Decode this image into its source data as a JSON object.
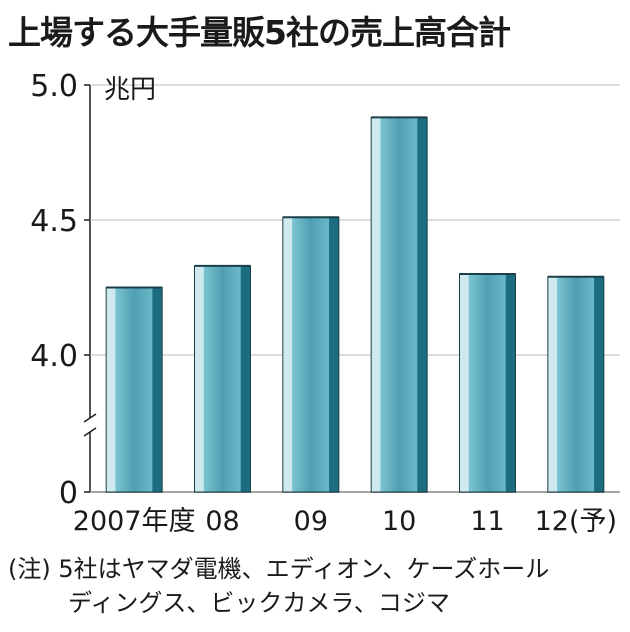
{
  "title": "上場する大手量販5社の売上高合計",
  "chart_data": {
    "type": "bar",
    "unit": "兆円",
    "categories": [
      "2007年度",
      "08",
      "09",
      "10",
      "11",
      "12(予)"
    ],
    "values": [
      4.25,
      4.33,
      4.51,
      4.88,
      4.3,
      4.29
    ],
    "yticks": [
      "5.0",
      "4.5",
      "4.0",
      "0"
    ],
    "ylim": [
      4.0,
      5.0
    ],
    "axis_break": true,
    "colors": {
      "bar_face": "#5aa8b8",
      "bar_light": "#cfe9ee",
      "bar_dark": "#1d6d80"
    }
  },
  "note": {
    "line1": "(注) 5社はヤマダ電機、エディオン、ケーズホール",
    "line2": "ディングス、ビックカメラ、コジマ"
  }
}
